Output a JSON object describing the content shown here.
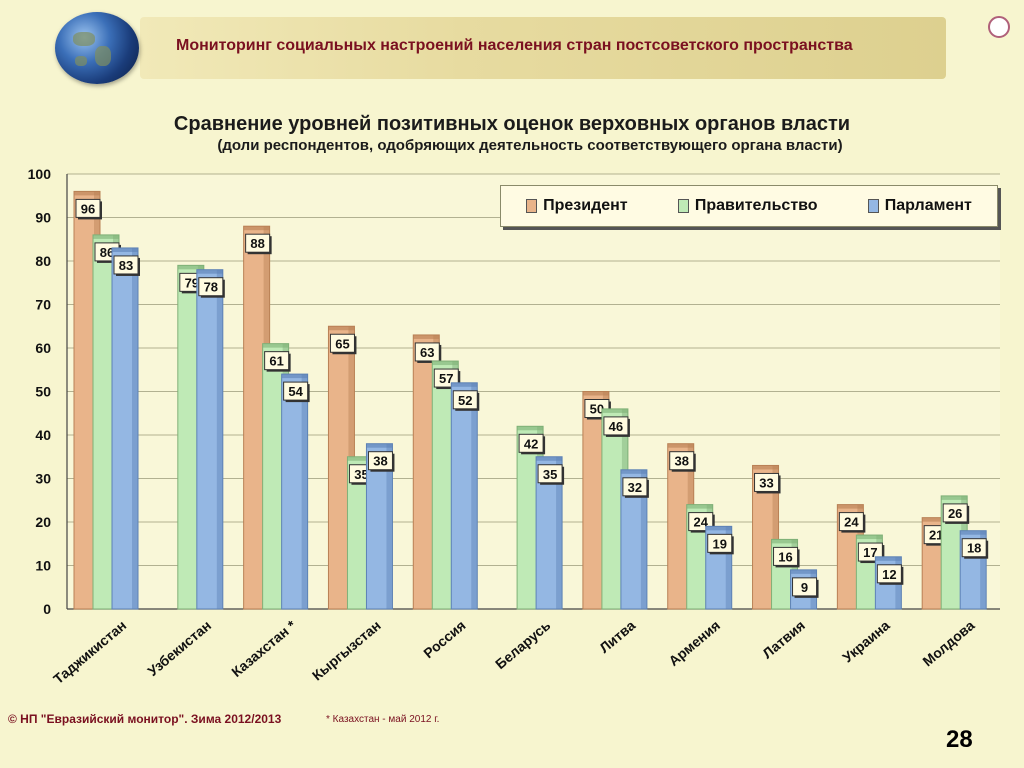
{
  "header": {
    "title": "Мониторинг социальных настроений населения стран постсоветского пространства"
  },
  "footer": {
    "copyright": "© НП \"Евразийский монитор\". Зима 2012/2013",
    "note": "* Казахстан - май 2012 г.",
    "page_number": "28"
  },
  "colors": {
    "president": "#e9b48a",
    "government": "#bfeab6",
    "parliament": "#94b7e3",
    "title_red": "#7a1020"
  },
  "chart_data": {
    "type": "bar",
    "title": "Сравнение уровней позитивных оценок верховных органов власти",
    "subtitle": "(доли респондентов, одобряющих деятельность соответствующего органа власти)",
    "categories": [
      "Таджикистан",
      "Узбекистан",
      "Казахстан *",
      "Кыргызстан",
      "Россия",
      "Беларусь",
      "Литва",
      "Армения",
      "Латвия",
      "Украина",
      "Молдова"
    ],
    "series": [
      {
        "name": "Президент",
        "values": [
          96,
          null,
          88,
          65,
          63,
          null,
          50,
          38,
          33,
          24,
          21
        ]
      },
      {
        "name": "Правительство",
        "values": [
          86,
          79,
          61,
          35,
          57,
          42,
          46,
          24,
          16,
          17,
          26
        ]
      },
      {
        "name": "Парламент",
        "values": [
          83,
          78,
          54,
          38,
          52,
          35,
          32,
          19,
          9,
          12,
          18
        ]
      }
    ],
    "ylim": [
      0,
      100
    ],
    "yticks": [
      0,
      10,
      20,
      30,
      40,
      50,
      60,
      70,
      80,
      90,
      100
    ],
    "grid": true,
    "legend": "top-right"
  }
}
